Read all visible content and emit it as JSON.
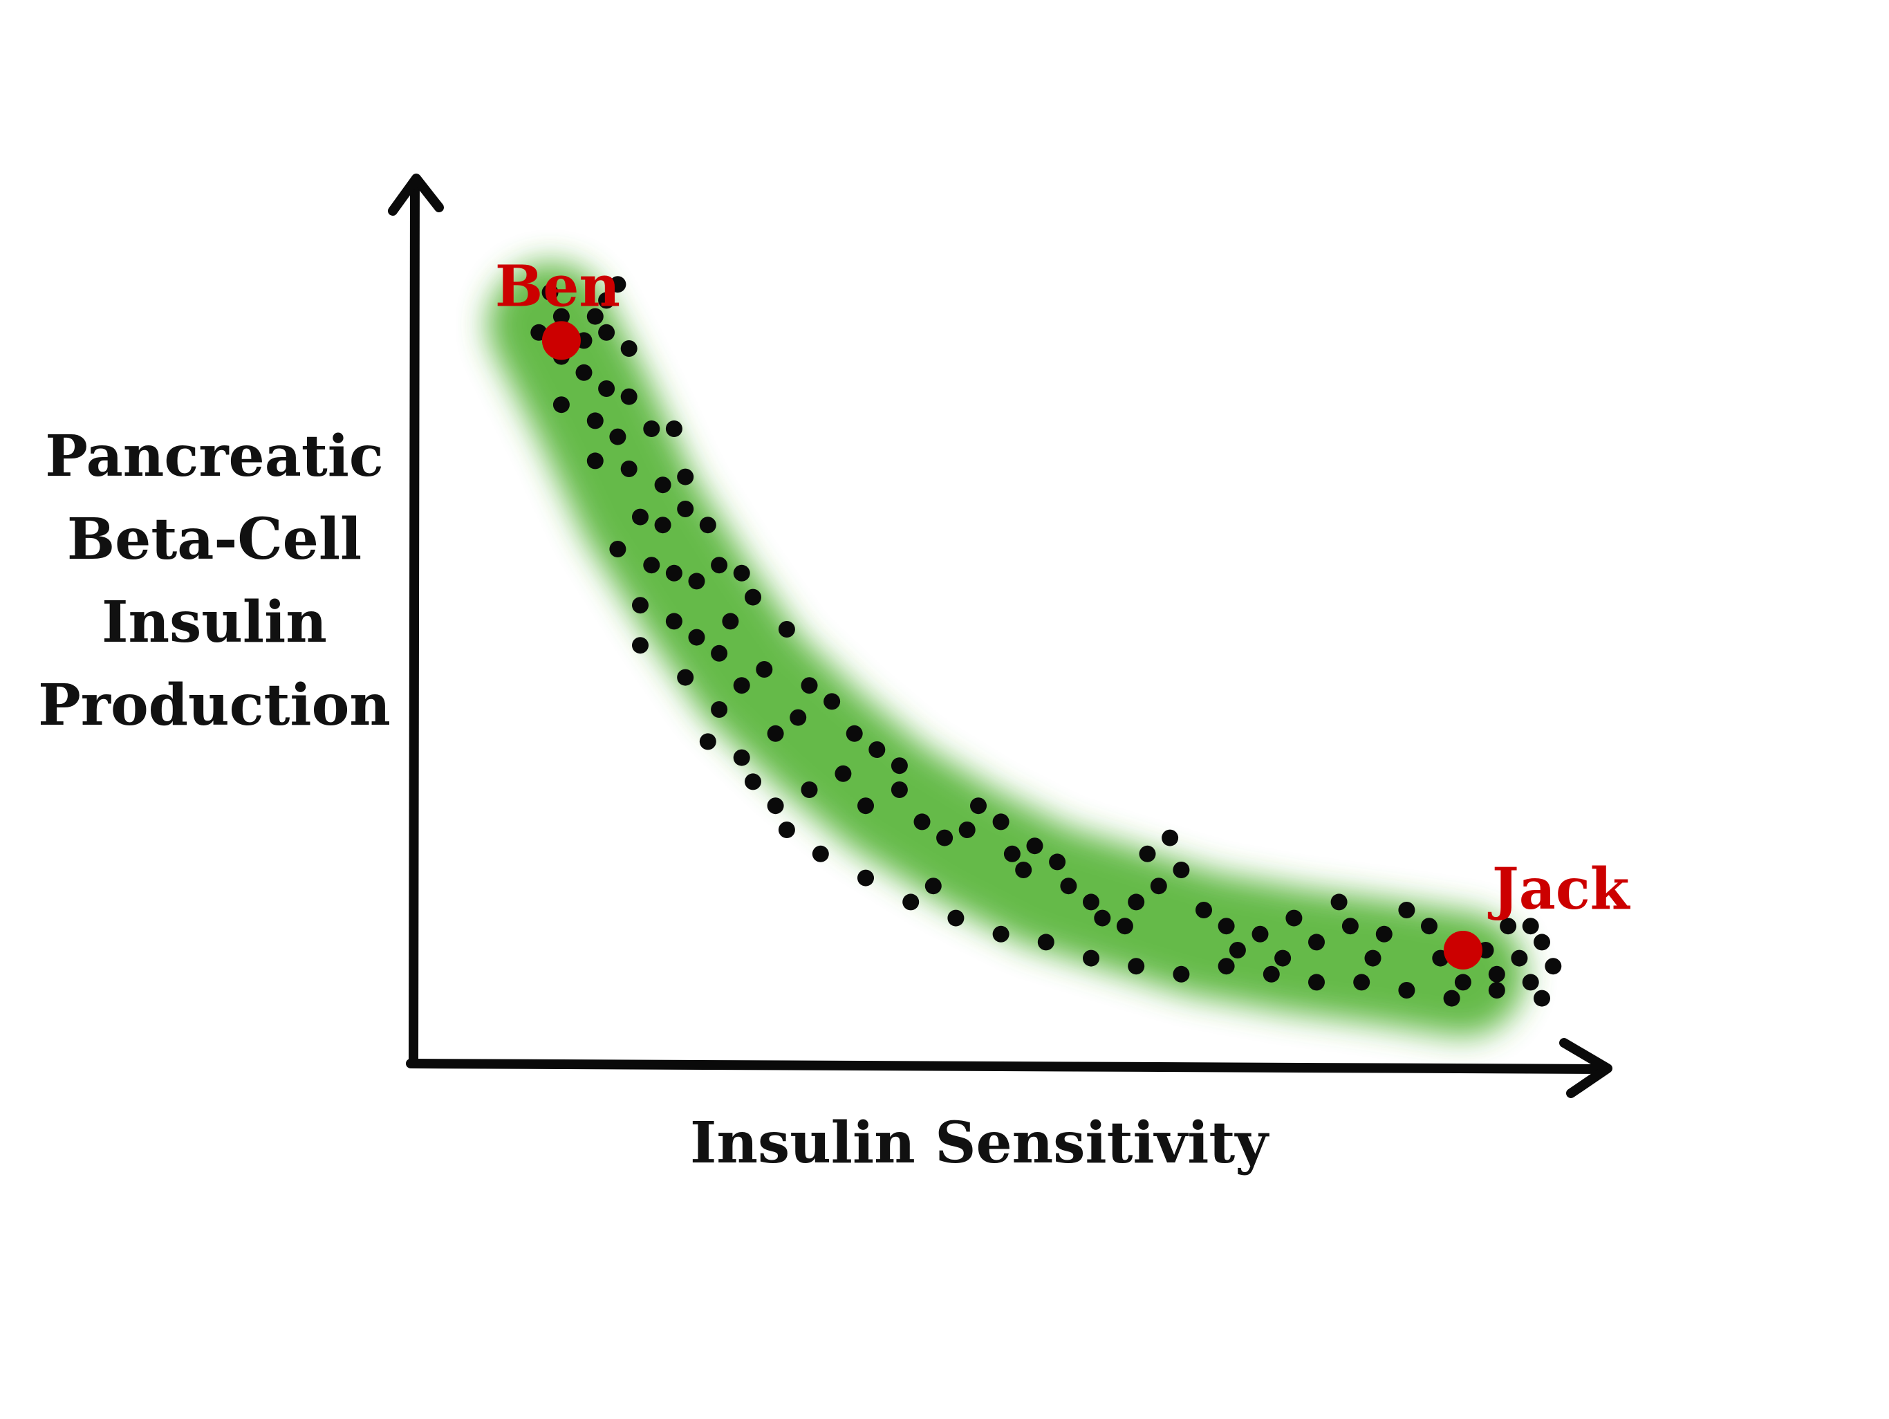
{
  "colors": {
    "band": "#4caf2a",
    "dot": "#0a0a0a",
    "highlight": "#cc0000",
    "axis": "#0a0a0a"
  },
  "chart_data": {
    "type": "scatter",
    "title": "",
    "xlabel": "Insulin Sensitivity",
    "ylabel_lines": [
      "Pancreatic",
      "Beta-Cell",
      "Insulin",
      "Production"
    ],
    "axis_ticks": "none",
    "grid": false,
    "xlim": [
      0,
      100
    ],
    "ylim": [
      0,
      100
    ],
    "trend_band": {
      "description_shape": "decreasing convex curve",
      "centerline": [
        [
          12,
          88
        ],
        [
          16,
          77
        ],
        [
          20,
          65
        ],
        [
          25,
          54
        ],
        [
          30,
          44
        ],
        [
          36,
          36
        ],
        [
          42,
          29
        ],
        [
          49,
          23
        ],
        [
          56,
          18
        ],
        [
          63,
          15
        ],
        [
          70,
          12
        ],
        [
          78,
          10
        ],
        [
          86,
          8.5
        ],
        [
          93,
          7
        ]
      ]
    },
    "series": [
      {
        "values": [
          [
            12,
            92
          ],
          [
            13,
            89
          ],
          [
            11,
            87
          ],
          [
            13,
            84
          ],
          [
            15,
            86
          ],
          [
            16,
            89
          ],
          [
            17,
            91
          ],
          [
            18,
            93
          ],
          [
            17,
            87
          ],
          [
            19,
            85
          ],
          [
            15,
            82
          ],
          [
            17,
            80
          ],
          [
            19,
            79
          ],
          [
            13,
            78
          ],
          [
            16,
            76
          ],
          [
            18,
            74
          ],
          [
            21,
            75
          ],
          [
            23,
            75
          ],
          [
            16,
            71
          ],
          [
            19,
            70
          ],
          [
            22,
            68
          ],
          [
            24,
            69
          ],
          [
            24,
            65
          ],
          [
            26,
            63
          ],
          [
            20,
            64
          ],
          [
            22,
            63
          ],
          [
            18,
            60
          ],
          [
            21,
            58
          ],
          [
            23,
            57
          ],
          [
            25,
            56
          ],
          [
            27,
            58
          ],
          [
            29,
            57
          ],
          [
            20,
            53
          ],
          [
            23,
            51
          ],
          [
            25,
            49
          ],
          [
            27,
            47
          ],
          [
            28,
            51
          ],
          [
            30,
            54
          ],
          [
            20,
            48
          ],
          [
            24,
            44
          ],
          [
            27,
            40
          ],
          [
            29,
            43
          ],
          [
            31,
            45
          ],
          [
            33,
            50
          ],
          [
            26,
            36
          ],
          [
            29,
            34
          ],
          [
            32,
            37
          ],
          [
            34,
            39
          ],
          [
            35,
            43
          ],
          [
            37,
            41
          ],
          [
            39,
            37
          ],
          [
            41,
            35
          ],
          [
            38,
            32
          ],
          [
            35,
            30
          ],
          [
            32,
            28
          ],
          [
            30,
            31
          ],
          [
            40,
            28
          ],
          [
            43,
            30
          ],
          [
            43,
            33
          ],
          [
            45,
            26
          ],
          [
            47,
            24
          ],
          [
            49,
            25
          ],
          [
            50,
            28
          ],
          [
            52,
            26
          ],
          [
            53,
            22
          ],
          [
            54,
            20
          ],
          [
            55,
            23
          ],
          [
            57,
            21
          ],
          [
            58,
            18
          ],
          [
            60,
            16
          ],
          [
            61,
            14
          ],
          [
            63,
            13
          ],
          [
            64,
            16
          ],
          [
            66,
            18
          ],
          [
            68,
            20
          ],
          [
            67,
            24
          ],
          [
            65,
            22
          ],
          [
            70,
            15
          ],
          [
            72,
            13
          ],
          [
            73,
            10
          ],
          [
            75,
            12
          ],
          [
            77,
            9
          ],
          [
            78,
            14
          ],
          [
            80,
            11
          ],
          [
            82,
            16
          ],
          [
            83,
            13
          ],
          [
            85,
            9
          ],
          [
            86,
            12
          ],
          [
            88,
            15
          ],
          [
            90,
            13
          ],
          [
            91,
            9
          ],
          [
            93,
            11
          ],
          [
            95,
            10
          ],
          [
            96,
            7
          ],
          [
            98,
            9
          ],
          [
            99,
            6
          ],
          [
            97,
            13
          ],
          [
            99,
            13
          ],
          [
            100,
            11
          ],
          [
            101,
            8
          ],
          [
            96,
            5
          ],
          [
            100,
            4
          ],
          [
            93,
            6
          ],
          [
            40,
            19
          ],
          [
            44,
            16
          ],
          [
            48,
            14
          ],
          [
            52,
            12
          ],
          [
            56,
            11
          ],
          [
            60,
            9
          ],
          [
            64,
            8
          ],
          [
            68,
            7
          ],
          [
            72,
            8
          ],
          [
            76,
            7
          ],
          [
            80,
            6
          ],
          [
            84,
            6
          ],
          [
            88,
            5
          ],
          [
            92,
            4
          ],
          [
            36,
            22
          ],
          [
            33,
            25
          ],
          [
            46,
            18
          ]
        ]
      }
    ],
    "highlighted_points": [
      {
        "label": "Ben",
        "x": 13,
        "y": 86
      },
      {
        "label": "Jack",
        "x": 93,
        "y": 10
      }
    ]
  }
}
